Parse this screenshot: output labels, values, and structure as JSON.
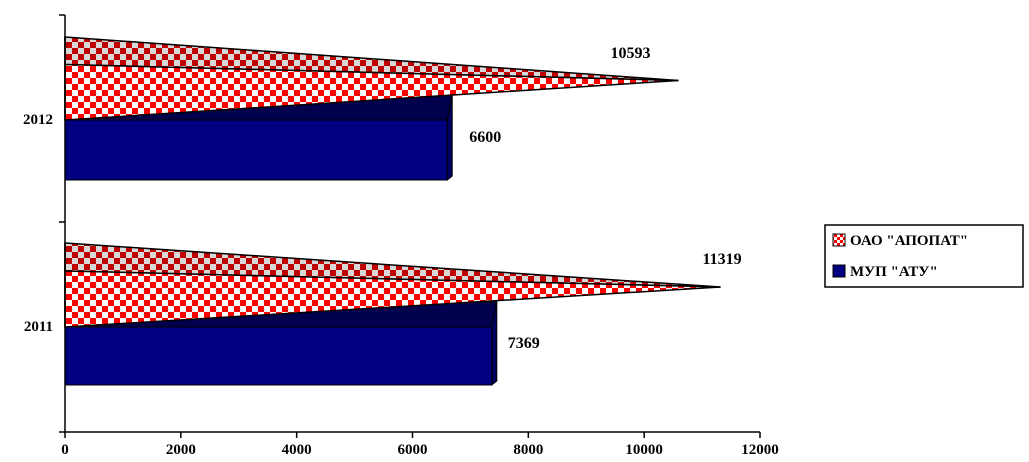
{
  "chart_data": {
    "type": "bar",
    "orientation": "horizontal",
    "categories": [
      "2012",
      "2011"
    ],
    "series": [
      {
        "name": "ОАО \"АПОПАТ\"",
        "values": [
          10593,
          11319
        ],
        "shape": "cone",
        "pattern": "checkerboard",
        "color": "#ff0000",
        "pattern_bg": "#ffffff"
      },
      {
        "name": "МУП \"АТУ\"",
        "values": [
          6600,
          7369
        ],
        "shape": "bar-3d",
        "color": "#000080"
      }
    ],
    "data_labels": [
      "10593",
      "6600",
      "11319",
      "7369"
    ],
    "x_ticks": [
      "0",
      "2000",
      "4000",
      "6000",
      "8000",
      "10000",
      "12000"
    ],
    "xlim": [
      0,
      12000
    ],
    "grid": false,
    "legend_position": "right"
  }
}
